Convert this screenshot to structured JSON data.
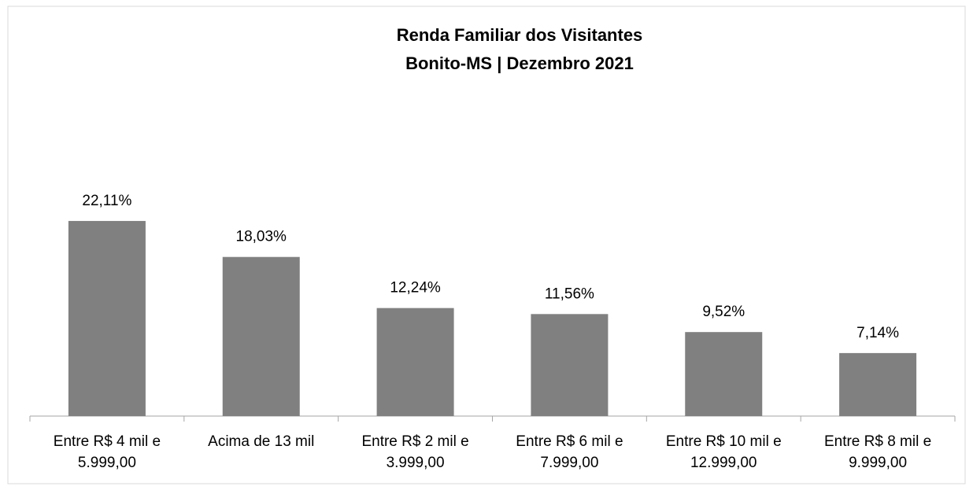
{
  "chart_data": {
    "type": "bar",
    "title": "Renda Familiar dos Visitantes",
    "subtitle": "Bonito-MS | Dezembro 2021",
    "categories": [
      "Entre R$ 4 mil e 5.999,00",
      "Acima de 13 mil",
      "Entre R$ 2 mil e 3.999,00",
      "Entre R$ 6 mil e 7.999,00",
      "Entre R$ 10 mil e 12.999,00",
      "Entre R$ 8 mil e 9.999,00"
    ],
    "values": [
      22.11,
      18.03,
      12.24,
      11.56,
      9.52,
      7.14
    ],
    "value_labels": [
      "22,11%",
      "18,03%",
      "12,24%",
      "11,56%",
      "9,52%",
      "7,14%"
    ],
    "color": "#808080"
  }
}
